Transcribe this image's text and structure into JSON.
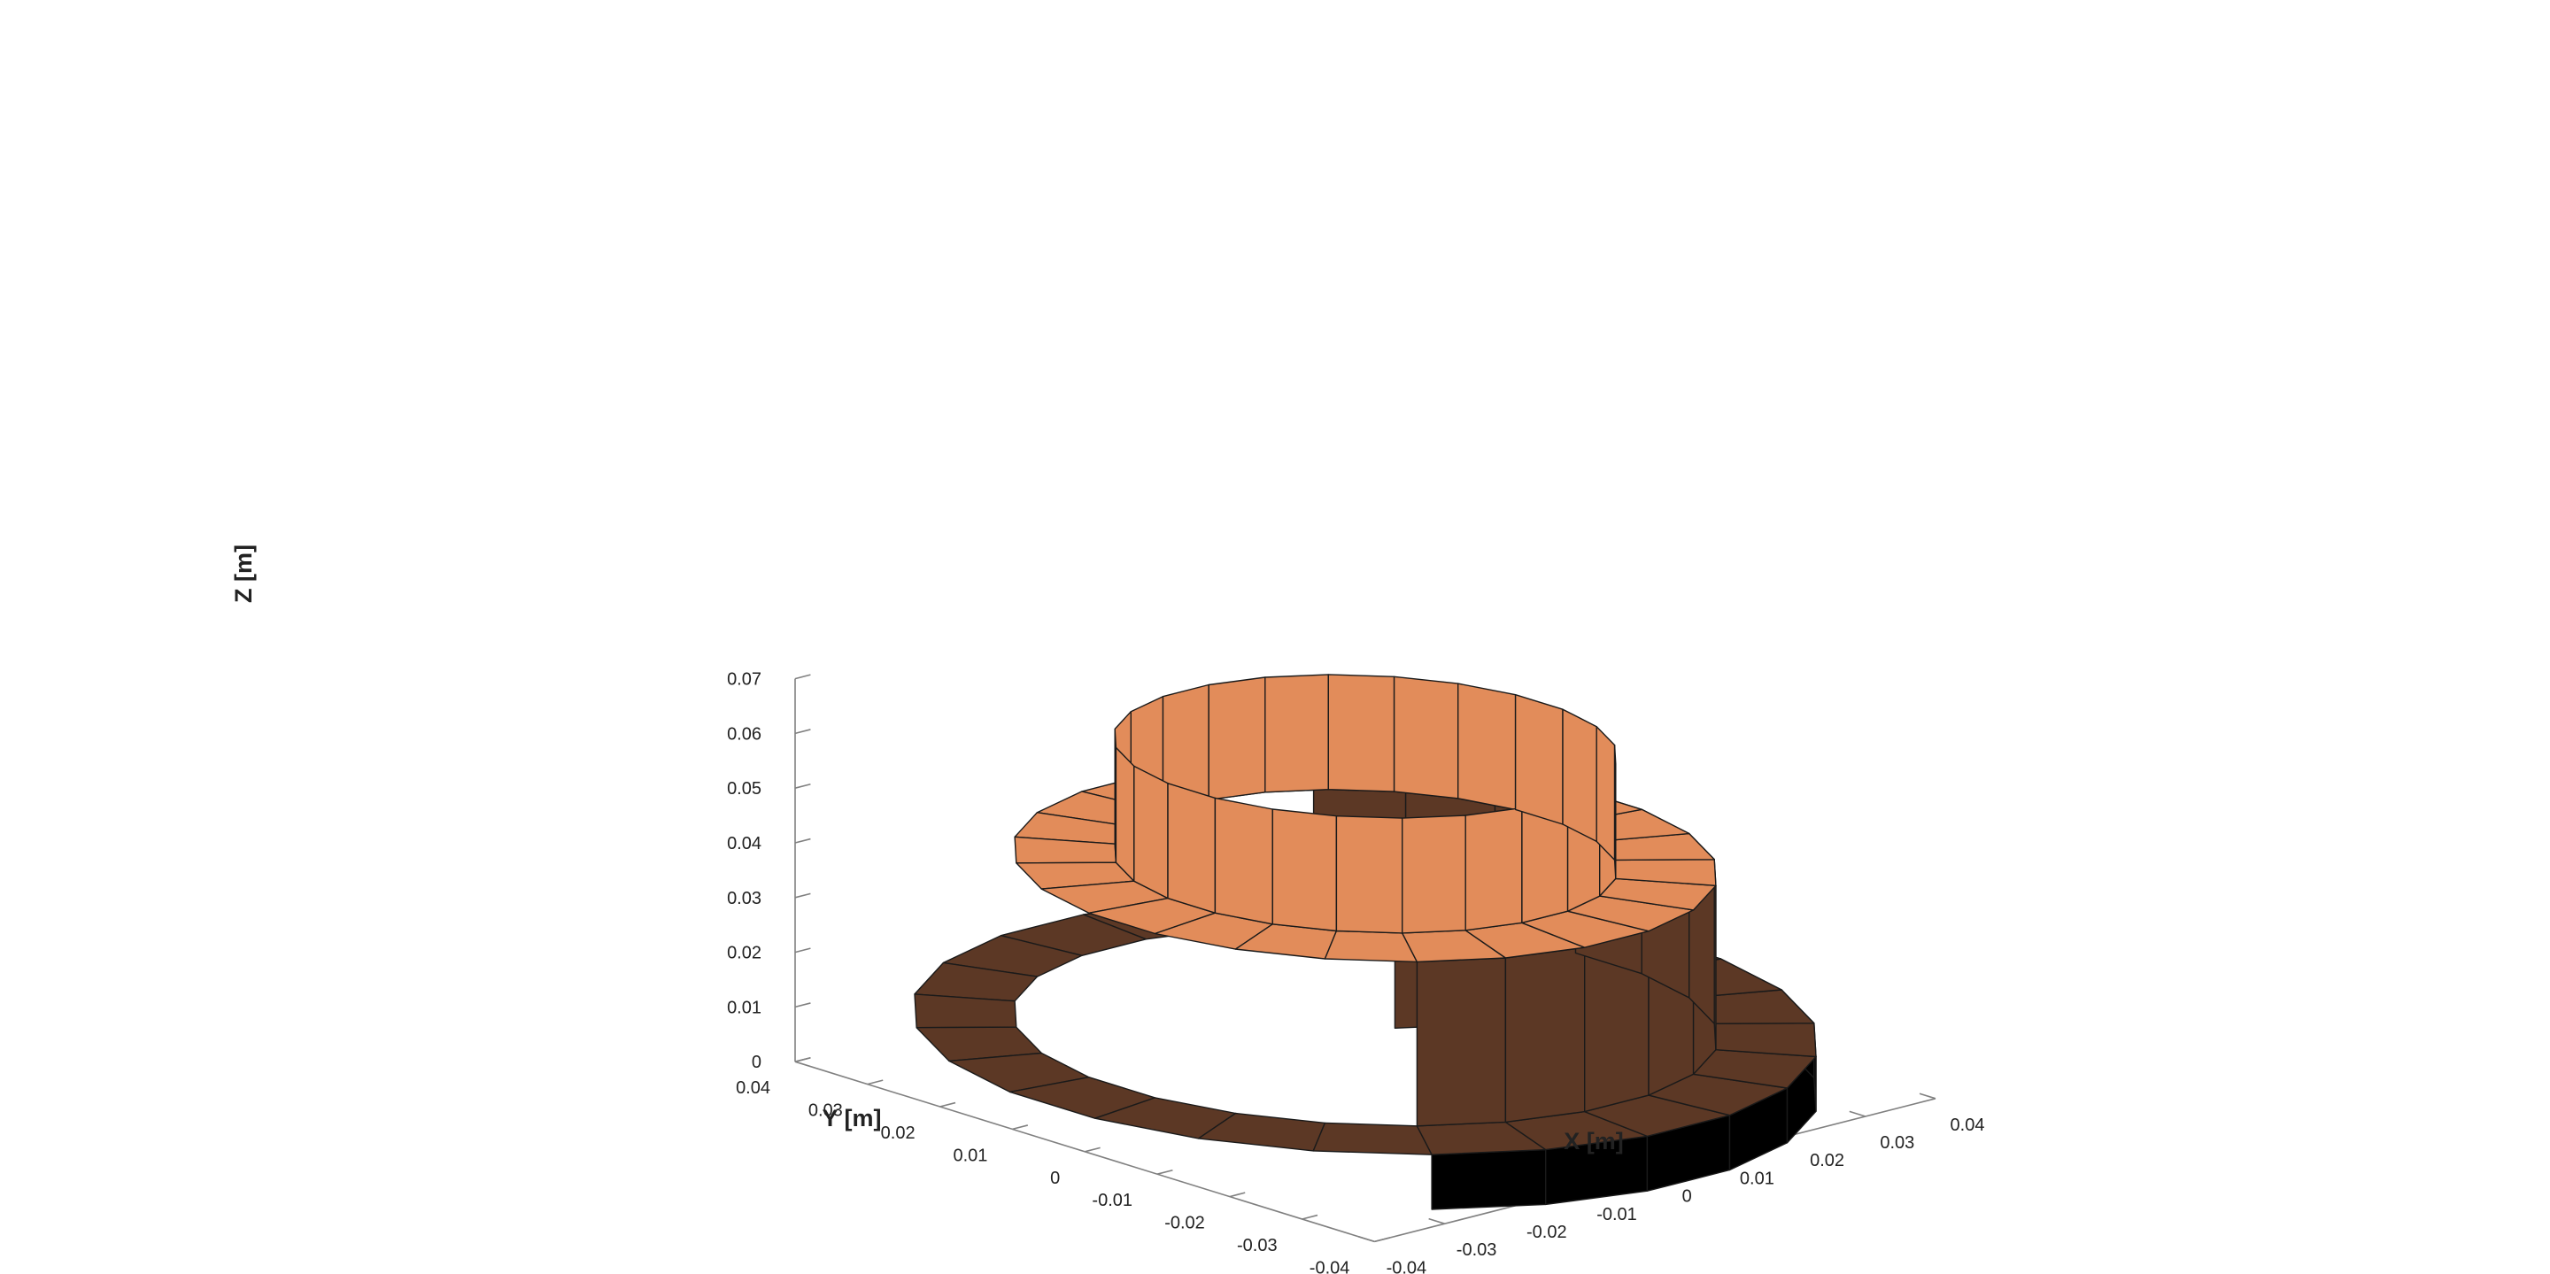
{
  "chart_data": {
    "type": "surface3d",
    "title": "",
    "xlabel": "X [m]",
    "ylabel": "Y [m]",
    "zlabel": "Z [m]",
    "x_ticks": [
      "-0.04",
      "-0.03",
      "-0.02",
      "-0.01",
      "0",
      "0.01",
      "0.02",
      "0.03",
      "0.04"
    ],
    "y_ticks": [
      "-0.04",
      "-0.03",
      "-0.02",
      "-0.01",
      "0",
      "0.01",
      "0.02",
      "0.03",
      "0.04"
    ],
    "z_ticks": [
      "0",
      "0.01",
      "0.02",
      "0.03",
      "0.04",
      "0.05",
      "0.06",
      "0.07"
    ],
    "xlim": [
      -0.04,
      0.04
    ],
    "ylim": [
      -0.04,
      0.04
    ],
    "zlim": [
      0,
      0.07
    ],
    "grid": false,
    "colors": {
      "upper_surface": "#e28c5a",
      "lower_surface": "#5c3825",
      "shadow_surface": "#000000",
      "edge": "#1a1a1a",
      "axis": "#808080"
    },
    "object": {
      "segments": 24,
      "tiers": [
        {
          "name": "base_disk",
          "z_bottom": 0.0,
          "z_top": 0.01,
          "r_inner": 0.0,
          "r_outer": 0.045,
          "color": "lower_surface"
        },
        {
          "name": "base_annulus",
          "z_top": 0.01,
          "r_inner": 0.035,
          "r_outer": 0.045,
          "color": "lower_surface"
        },
        {
          "name": "middle_ring",
          "z_bottom": 0.01,
          "z_top": 0.04,
          "r_inner": 0.025,
          "r_outer": 0.035,
          "color_outer": "lower_surface",
          "color_top": "upper_surface"
        },
        {
          "name": "upper_ring",
          "z_bottom": 0.04,
          "z_top": 0.061,
          "r_inner": 0.02,
          "r_outer": 0.025,
          "color_outer": "upper_surface",
          "color_inner": "lower_surface"
        }
      ]
    }
  }
}
